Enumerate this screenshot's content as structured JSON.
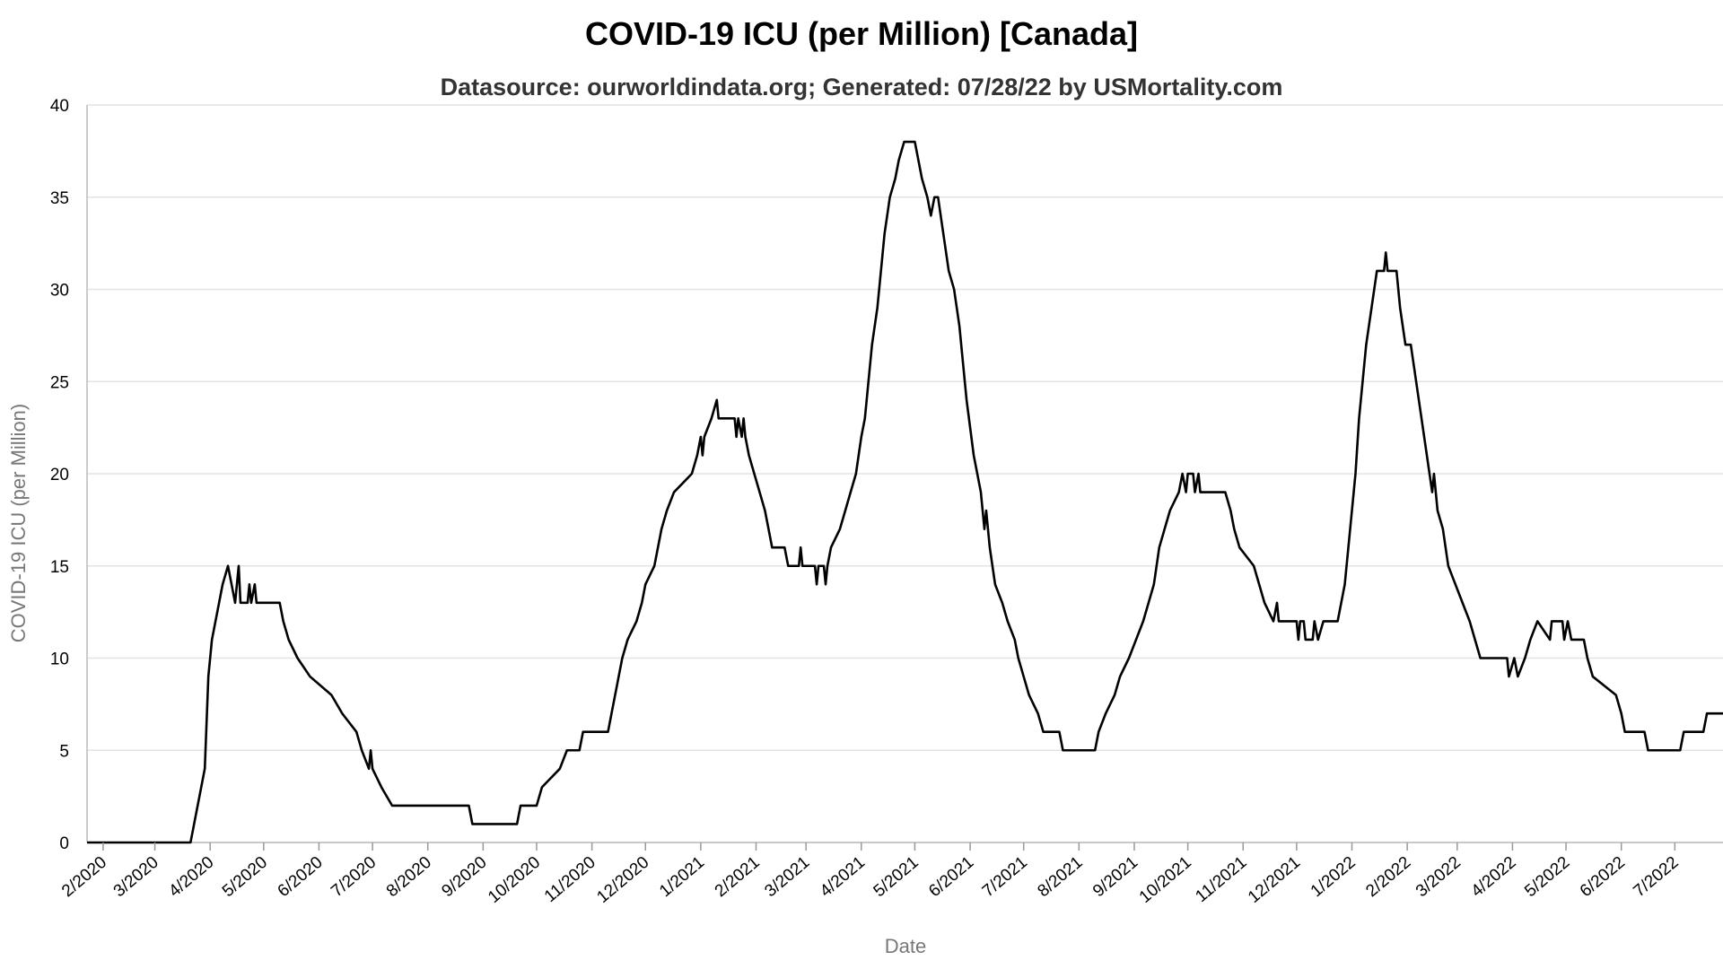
{
  "chart_data": {
    "type": "line",
    "title": "COVID-19 ICU (per Million) [Canada]",
    "subtitle": "Datasource: ourworldindata.org; Generated: 07/28/22 by USMortality.com",
    "xlabel": "Date",
    "ylabel": "COVID-19 ICU (per Million)",
    "ylim": [
      0,
      40
    ],
    "y_ticks": [
      "0",
      "5",
      "10",
      "15",
      "20",
      "25",
      "30",
      "35",
      "40"
    ],
    "x_range": [
      "2020-01-23",
      "2022-07-28"
    ],
    "x_ticks": [
      {
        "date": "2020-02-01",
        "label": "2/2020"
      },
      {
        "date": "2020-03-01",
        "label": "3/2020"
      },
      {
        "date": "2020-04-01",
        "label": "4/2020"
      },
      {
        "date": "2020-05-01",
        "label": "5/2020"
      },
      {
        "date": "2020-06-01",
        "label": "6/2020"
      },
      {
        "date": "2020-07-01",
        "label": "7/2020"
      },
      {
        "date": "2020-08-01",
        "label": "8/2020"
      },
      {
        "date": "2020-09-01",
        "label": "9/2020"
      },
      {
        "date": "2020-10-01",
        "label": "10/2020"
      },
      {
        "date": "2020-11-01",
        "label": "11/2020"
      },
      {
        "date": "2020-12-01",
        "label": "12/2020"
      },
      {
        "date": "2021-01-01",
        "label": "1/2021"
      },
      {
        "date": "2021-02-01",
        "label": "2/2021"
      },
      {
        "date": "2021-03-01",
        "label": "3/2021"
      },
      {
        "date": "2021-04-01",
        "label": "4/2021"
      },
      {
        "date": "2021-05-01",
        "label": "5/2021"
      },
      {
        "date": "2021-06-01",
        "label": "6/2021"
      },
      {
        "date": "2021-07-01",
        "label": "7/2021"
      },
      {
        "date": "2021-08-01",
        "label": "8/2021"
      },
      {
        "date": "2021-09-01",
        "label": "9/2021"
      },
      {
        "date": "2021-10-01",
        "label": "10/2021"
      },
      {
        "date": "2021-11-01",
        "label": "11/2021"
      },
      {
        "date": "2021-12-01",
        "label": "12/2021"
      },
      {
        "date": "2022-01-01",
        "label": "1/2022"
      },
      {
        "date": "2022-02-01",
        "label": "2/2022"
      },
      {
        "date": "2022-03-01",
        "label": "3/2022"
      },
      {
        "date": "2022-04-01",
        "label": "4/2022"
      },
      {
        "date": "2022-05-01",
        "label": "5/2022"
      },
      {
        "date": "2022-06-01",
        "label": "6/2022"
      },
      {
        "date": "2022-07-01",
        "label": "7/2022"
      }
    ],
    "grid": true,
    "legend": "none",
    "series": [
      {
        "color": "#000000",
        "points": [
          [
            "2020-01-23",
            0
          ],
          [
            "2020-03-21",
            0
          ],
          [
            "2020-03-23",
            1
          ],
          [
            "2020-03-25",
            2
          ],
          [
            "2020-03-27",
            3
          ],
          [
            "2020-03-29",
            4
          ],
          [
            "2020-03-31",
            9
          ],
          [
            "2020-04-02",
            11
          ],
          [
            "2020-04-04",
            12
          ],
          [
            "2020-04-06",
            13
          ],
          [
            "2020-04-08",
            14
          ],
          [
            "2020-04-11",
            15
          ],
          [
            "2020-04-13",
            14
          ],
          [
            "2020-04-15",
            13
          ],
          [
            "2020-04-17",
            15
          ],
          [
            "2020-04-18",
            13
          ],
          [
            "2020-04-22",
            13
          ],
          [
            "2020-04-23",
            14
          ],
          [
            "2020-04-24",
            13
          ],
          [
            "2020-04-26",
            14
          ],
          [
            "2020-04-27",
            13
          ],
          [
            "2020-05-10",
            13
          ],
          [
            "2020-05-12",
            12
          ],
          [
            "2020-05-15",
            11
          ],
          [
            "2020-05-20",
            10
          ],
          [
            "2020-05-27",
            9
          ],
          [
            "2020-06-08",
            8
          ],
          [
            "2020-06-14",
            7
          ],
          [
            "2020-06-22",
            6
          ],
          [
            "2020-06-25",
            5
          ],
          [
            "2020-06-29",
            4
          ],
          [
            "2020-06-30",
            5
          ],
          [
            "2020-07-01",
            4
          ],
          [
            "2020-07-06",
            3
          ],
          [
            "2020-07-12",
            2
          ],
          [
            "2020-08-24",
            2
          ],
          [
            "2020-08-26",
            1
          ],
          [
            "2020-09-20",
            1
          ],
          [
            "2020-09-22",
            2
          ],
          [
            "2020-10-01",
            2
          ],
          [
            "2020-10-04",
            3
          ],
          [
            "2020-10-14",
            4
          ],
          [
            "2020-10-18",
            5
          ],
          [
            "2020-10-25",
            5
          ],
          [
            "2020-10-27",
            6
          ],
          [
            "2020-11-10",
            6
          ],
          [
            "2020-11-12",
            7
          ],
          [
            "2020-11-14",
            8
          ],
          [
            "2020-11-16",
            9
          ],
          [
            "2020-11-18",
            10
          ],
          [
            "2020-11-21",
            11
          ],
          [
            "2020-11-26",
            12
          ],
          [
            "2020-11-29",
            13
          ],
          [
            "2020-12-01",
            14
          ],
          [
            "2020-12-06",
            15
          ],
          [
            "2020-12-08",
            16
          ],
          [
            "2020-12-10",
            17
          ],
          [
            "2020-12-13",
            18
          ],
          [
            "2020-12-17",
            19
          ],
          [
            "2020-12-27",
            20
          ],
          [
            "2020-12-30",
            21
          ],
          [
            "2021-01-01",
            22
          ],
          [
            "2021-01-02",
            21
          ],
          [
            "2021-01-03",
            22
          ],
          [
            "2021-01-07",
            23
          ],
          [
            "2021-01-10",
            24
          ],
          [
            "2021-01-11",
            23
          ],
          [
            "2021-01-20",
            23
          ],
          [
            "2021-01-21",
            22
          ],
          [
            "2021-01-22",
            23
          ],
          [
            "2021-01-24",
            22
          ],
          [
            "2021-01-25",
            23
          ],
          [
            "2021-01-26",
            22
          ],
          [
            "2021-01-28",
            21
          ],
          [
            "2021-01-31",
            20
          ],
          [
            "2021-02-03",
            19
          ],
          [
            "2021-02-06",
            18
          ],
          [
            "2021-02-08",
            17
          ],
          [
            "2021-02-10",
            16
          ],
          [
            "2021-02-17",
            16
          ],
          [
            "2021-02-19",
            15
          ],
          [
            "2021-02-25",
            15
          ],
          [
            "2021-02-26",
            16
          ],
          [
            "2021-02-27",
            15
          ],
          [
            "2021-03-06",
            15
          ],
          [
            "2021-03-07",
            14
          ],
          [
            "2021-03-08",
            15
          ],
          [
            "2021-03-11",
            15
          ],
          [
            "2021-03-12",
            14
          ],
          [
            "2021-03-13",
            15
          ],
          [
            "2021-03-15",
            16
          ],
          [
            "2021-03-20",
            17
          ],
          [
            "2021-03-23",
            18
          ],
          [
            "2021-03-26",
            19
          ],
          [
            "2021-03-29",
            20
          ],
          [
            "2021-04-01",
            22
          ],
          [
            "2021-04-03",
            23
          ],
          [
            "2021-04-05",
            25
          ],
          [
            "2021-04-07",
            27
          ],
          [
            "2021-04-10",
            29
          ],
          [
            "2021-04-12",
            31
          ],
          [
            "2021-04-14",
            33
          ],
          [
            "2021-04-17",
            35
          ],
          [
            "2021-04-20",
            36
          ],
          [
            "2021-04-22",
            37
          ],
          [
            "2021-04-25",
            38
          ],
          [
            "2021-05-01",
            38
          ],
          [
            "2021-05-03",
            37
          ],
          [
            "2021-05-05",
            36
          ],
          [
            "2021-05-08",
            35
          ],
          [
            "2021-05-10",
            34
          ],
          [
            "2021-05-12",
            35
          ],
          [
            "2021-05-14",
            35
          ],
          [
            "2021-05-17",
            33
          ],
          [
            "2021-05-20",
            31
          ],
          [
            "2021-05-23",
            30
          ],
          [
            "2021-05-26",
            28
          ],
          [
            "2021-05-28",
            26
          ],
          [
            "2021-05-30",
            24
          ],
          [
            "2021-06-03",
            21
          ],
          [
            "2021-06-07",
            19
          ],
          [
            "2021-06-09",
            17
          ],
          [
            "2021-06-10",
            18
          ],
          [
            "2021-06-12",
            16
          ],
          [
            "2021-06-15",
            14
          ],
          [
            "2021-06-19",
            13
          ],
          [
            "2021-06-22",
            12
          ],
          [
            "2021-06-26",
            11
          ],
          [
            "2021-06-28",
            10
          ],
          [
            "2021-07-01",
            9
          ],
          [
            "2021-07-04",
            8
          ],
          [
            "2021-07-09",
            7
          ],
          [
            "2021-07-12",
            6
          ],
          [
            "2021-07-21",
            6
          ],
          [
            "2021-07-23",
            5
          ],
          [
            "2021-08-10",
            5
          ],
          [
            "2021-08-12",
            6
          ],
          [
            "2021-08-16",
            7
          ],
          [
            "2021-08-21",
            8
          ],
          [
            "2021-08-24",
            9
          ],
          [
            "2021-08-29",
            10
          ],
          [
            "2021-09-02",
            11
          ],
          [
            "2021-09-06",
            12
          ],
          [
            "2021-09-09",
            13
          ],
          [
            "2021-09-12",
            14
          ],
          [
            "2021-09-15",
            16
          ],
          [
            "2021-09-18",
            17
          ],
          [
            "2021-09-21",
            18
          ],
          [
            "2021-09-26",
            19
          ],
          [
            "2021-09-28",
            20
          ],
          [
            "2021-09-30",
            19
          ],
          [
            "2021-10-01",
            20
          ],
          [
            "2021-10-04",
            20
          ],
          [
            "2021-10-05",
            19
          ],
          [
            "2021-10-07",
            20
          ],
          [
            "2021-10-08",
            19
          ],
          [
            "2021-10-22",
            19
          ],
          [
            "2021-10-25",
            18
          ],
          [
            "2021-10-27",
            17
          ],
          [
            "2021-10-30",
            16
          ],
          [
            "2021-11-07",
            15
          ],
          [
            "2021-11-10",
            14
          ],
          [
            "2021-11-13",
            13
          ],
          [
            "2021-11-18",
            12
          ],
          [
            "2021-11-20",
            13
          ],
          [
            "2021-11-21",
            12
          ],
          [
            "2021-12-01",
            12
          ],
          [
            "2021-12-02",
            11
          ],
          [
            "2021-12-03",
            12
          ],
          [
            "2021-12-05",
            12
          ],
          [
            "2021-12-06",
            11
          ],
          [
            "2021-12-10",
            11
          ],
          [
            "2021-12-11",
            12
          ],
          [
            "2021-12-13",
            11
          ],
          [
            "2021-12-16",
            12
          ],
          [
            "2021-12-24",
            12
          ],
          [
            "2021-12-26",
            13
          ],
          [
            "2021-12-28",
            14
          ],
          [
            "2021-12-30",
            16
          ],
          [
            "2022-01-01",
            18
          ],
          [
            "2022-01-03",
            20
          ],
          [
            "2022-01-05",
            23
          ],
          [
            "2022-01-07",
            25
          ],
          [
            "2022-01-09",
            27
          ],
          [
            "2022-01-12",
            29
          ],
          [
            "2022-01-15",
            31
          ],
          [
            "2022-01-19",
            31
          ],
          [
            "2022-01-20",
            32
          ],
          [
            "2022-01-21",
            31
          ],
          [
            "2022-01-26",
            31
          ],
          [
            "2022-01-28",
            29
          ],
          [
            "2022-01-31",
            27
          ],
          [
            "2022-02-03",
            27
          ],
          [
            "2022-02-06",
            25
          ],
          [
            "2022-02-09",
            23
          ],
          [
            "2022-02-12",
            21
          ],
          [
            "2022-02-15",
            19
          ],
          [
            "2022-02-16",
            20
          ],
          [
            "2022-02-18",
            18
          ],
          [
            "2022-02-21",
            17
          ],
          [
            "2022-02-24",
            15
          ],
          [
            "2022-02-28",
            14
          ],
          [
            "2022-03-04",
            13
          ],
          [
            "2022-03-08",
            12
          ],
          [
            "2022-03-11",
            11
          ],
          [
            "2022-03-14",
            10
          ],
          [
            "2022-03-29",
            10
          ],
          [
            "2022-03-30",
            9
          ],
          [
            "2022-04-02",
            10
          ],
          [
            "2022-04-04",
            9
          ],
          [
            "2022-04-08",
            10
          ],
          [
            "2022-04-11",
            11
          ],
          [
            "2022-04-15",
            12
          ],
          [
            "2022-04-22",
            11
          ],
          [
            "2022-04-23",
            12
          ],
          [
            "2022-04-29",
            12
          ],
          [
            "2022-04-30",
            11
          ],
          [
            "2022-05-02",
            12
          ],
          [
            "2022-05-04",
            11
          ],
          [
            "2022-05-11",
            11
          ],
          [
            "2022-05-13",
            10
          ],
          [
            "2022-05-16",
            9
          ],
          [
            "2022-05-29",
            8
          ],
          [
            "2022-06-01",
            7
          ],
          [
            "2022-06-03",
            6
          ],
          [
            "2022-06-14",
            6
          ],
          [
            "2022-06-16",
            5
          ],
          [
            "2022-07-04",
            5
          ],
          [
            "2022-07-06",
            6
          ],
          [
            "2022-07-17",
            6
          ],
          [
            "2022-07-19",
            7
          ],
          [
            "2022-07-28",
            7
          ]
        ]
      }
    ]
  }
}
